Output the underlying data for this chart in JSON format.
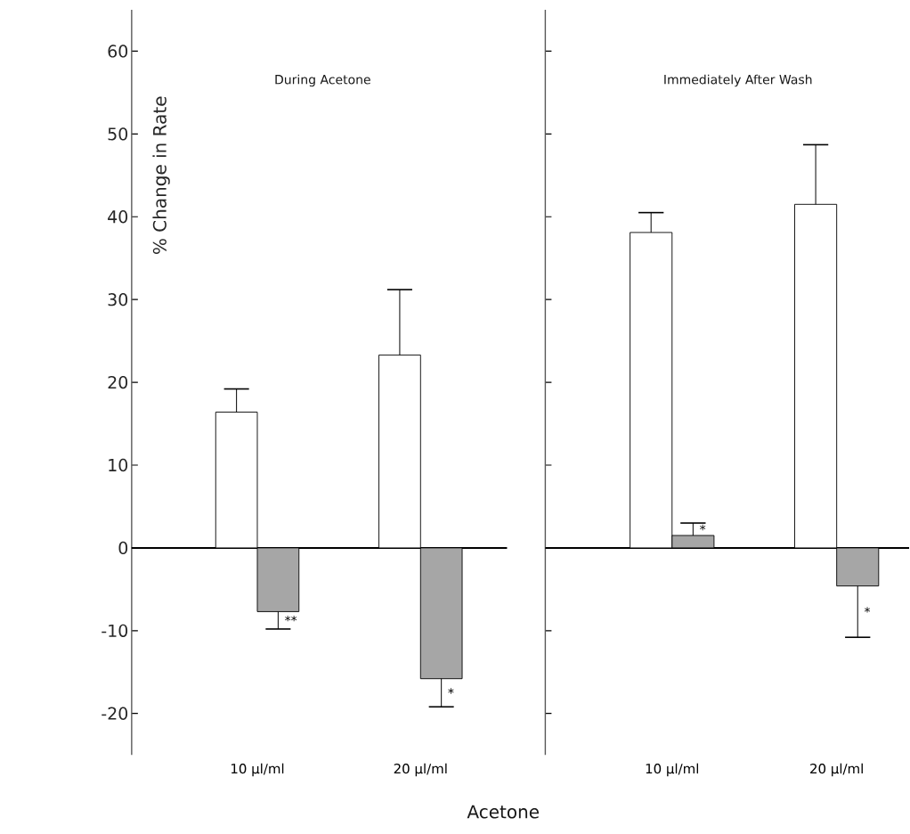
{
  "chart_data": [
    {
      "type": "bar",
      "title": "During Acetone",
      "ylabel": "% Change in Rate",
      "xlabel": "Acetone",
      "categories": [
        "10 µl/ml",
        "20 µl/ml"
      ],
      "series": [
        {
          "color": "#ffffff",
          "values": [
            16.4,
            23.3
          ],
          "errors": [
            [
              16.4,
              19.2
            ],
            [
              23.3,
              31.2
            ]
          ]
        },
        {
          "color": "#a6a6a6",
          "values": [
            -7.7,
            -15.8
          ],
          "errors": [
            [
              -9.8,
              -7.7
            ],
            [
              -19.2,
              -15.8
            ]
          ]
        }
      ],
      "ylim": [
        -25,
        65
      ],
      "yticks": [
        -20,
        -10,
        0,
        10,
        20,
        30,
        40,
        50,
        60
      ],
      "annotations": [
        "**",
        "*"
      ]
    },
    {
      "type": "bar",
      "title": "Immediately After Wash",
      "categories": [
        "10 µl/ml",
        "20 µl/ml"
      ],
      "series": [
        {
          "color": "#ffffff",
          "values": [
            38.1,
            41.5
          ],
          "errors": [
            [
              38.1,
              40.5
            ],
            [
              41.5,
              48.7
            ]
          ]
        },
        {
          "color": "#a6a6a6",
          "values": [
            1.5,
            -4.6
          ],
          "errors": [
            [
              1.5,
              3.0
            ],
            [
              -10.8,
              -4.6
            ]
          ]
        }
      ],
      "ylim": [
        -25,
        65
      ],
      "yticks": [
        -20,
        -10,
        0,
        10,
        20,
        30,
        40,
        50,
        60
      ],
      "tick_labels": "x",
      "annotations": [
        "*",
        "*"
      ]
    }
  ]
}
